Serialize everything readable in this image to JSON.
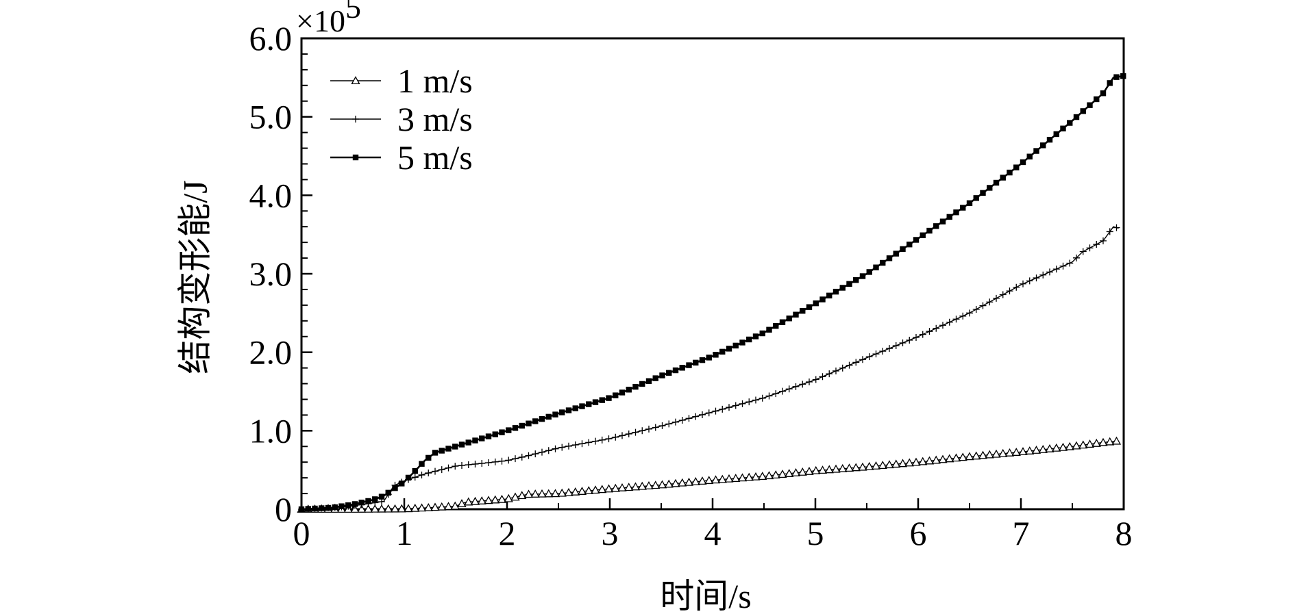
{
  "chart_data": {
    "type": "line",
    "title": "",
    "xlabel": "时间/s",
    "ylabel": "结构变形能/J",
    "y_multiplier": "×10",
    "y_multiplier_exponent": "5",
    "xlim": [
      0,
      8
    ],
    "ylim": [
      0,
      6.0
    ],
    "x_ticks": [
      0,
      1,
      2,
      3,
      4,
      5,
      6,
      7,
      8
    ],
    "x_tick_labels": [
      "0",
      "1",
      "2",
      "3",
      "4",
      "5",
      "6",
      "7",
      "8"
    ],
    "y_ticks": [
      0,
      1,
      2,
      3,
      4,
      5,
      6
    ],
    "y_tick_labels": [
      "0",
      "1.0",
      "2.0",
      "3.0",
      "4.0",
      "5.0",
      "6.0"
    ],
    "legend_position": "top-left",
    "grid": false,
    "series": [
      {
        "name": "1 m/s",
        "marker": "open-triangle",
        "x": [
          0,
          0.5,
          1.0,
          1.25,
          1.5,
          1.6,
          1.8,
          2.0,
          2.2,
          2.5,
          3.0,
          3.5,
          4.0,
          4.5,
          5.0,
          5.5,
          6.0,
          6.5,
          7.0,
          7.5,
          7.8,
          7.95
        ],
        "y": [
          0,
          0,
          0.005,
          0.02,
          0.04,
          0.09,
          0.11,
          0.13,
          0.19,
          0.2,
          0.26,
          0.31,
          0.37,
          0.42,
          0.49,
          0.54,
          0.6,
          0.67,
          0.73,
          0.8,
          0.85,
          0.87
        ]
      },
      {
        "name": "3 m/s",
        "marker": "plus",
        "x": [
          0,
          0.4,
          0.6,
          0.8,
          0.9,
          1.0,
          1.2,
          1.5,
          1.8,
          2.0,
          2.2,
          2.5,
          3.0,
          3.5,
          4.0,
          4.5,
          5.0,
          5.5,
          6.0,
          6.5,
          7.0,
          7.5,
          7.6,
          7.8,
          7.9,
          7.95
        ],
        "y": [
          0,
          0.03,
          0.06,
          0.1,
          0.3,
          0.36,
          0.45,
          0.55,
          0.59,
          0.62,
          0.68,
          0.78,
          0.9,
          1.06,
          1.24,
          1.42,
          1.65,
          1.93,
          2.2,
          2.5,
          2.86,
          3.15,
          3.28,
          3.42,
          3.6,
          3.58
        ]
      },
      {
        "name": "5 m/s",
        "marker": "filled-square",
        "x": [
          0,
          0.3,
          0.5,
          0.7,
          0.8,
          1.0,
          1.1,
          1.2,
          1.3,
          1.5,
          1.8,
          2.0,
          2.5,
          3.0,
          3.5,
          4.0,
          4.5,
          5.0,
          5.5,
          6.0,
          6.5,
          7.0,
          7.5,
          7.8,
          7.9,
          8.0
        ],
        "y": [
          0,
          0.02,
          0.06,
          0.12,
          0.17,
          0.35,
          0.48,
          0.62,
          0.72,
          0.8,
          0.92,
          1.0,
          1.22,
          1.42,
          1.7,
          1.95,
          2.25,
          2.62,
          3.0,
          3.45,
          3.9,
          4.4,
          4.95,
          5.3,
          5.5,
          5.52
        ]
      }
    ]
  }
}
